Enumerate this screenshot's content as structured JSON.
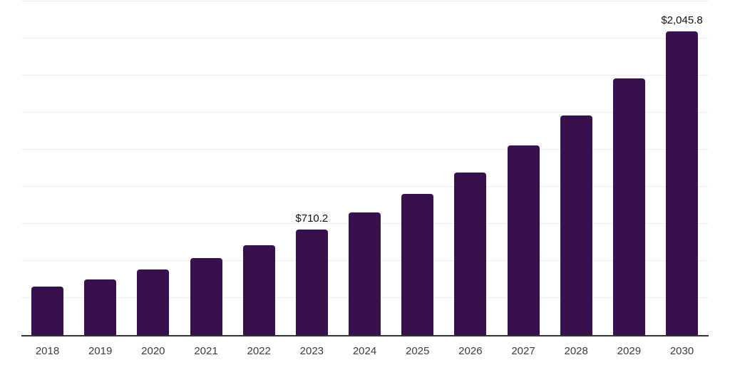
{
  "chart_data": {
    "type": "bar",
    "title": "",
    "xlabel": "",
    "ylabel": "",
    "categories": [
      "2018",
      "2019",
      "2020",
      "2021",
      "2022",
      "2023",
      "2024",
      "2025",
      "2026",
      "2027",
      "2028",
      "2029",
      "2030"
    ],
    "values": [
      329,
      377,
      440,
      520,
      605,
      710.2,
      827,
      951,
      1096,
      1277,
      1483,
      1732,
      2045.8
    ],
    "value_labels": [
      "",
      "",
      "",
      "",
      "",
      "$710.2",
      "",
      "",
      "",
      "",
      "",
      "",
      "$2,045.8"
    ],
    "ylim": [
      0,
      2250
    ],
    "gridline_step": 250,
    "grid": true,
    "legend": false,
    "bar_color": "#36114e",
    "axis_color": "#333333",
    "gridline_color": "#efefef",
    "tick_label_color": "#3d3d3d",
    "value_label_color": "#111111"
  }
}
